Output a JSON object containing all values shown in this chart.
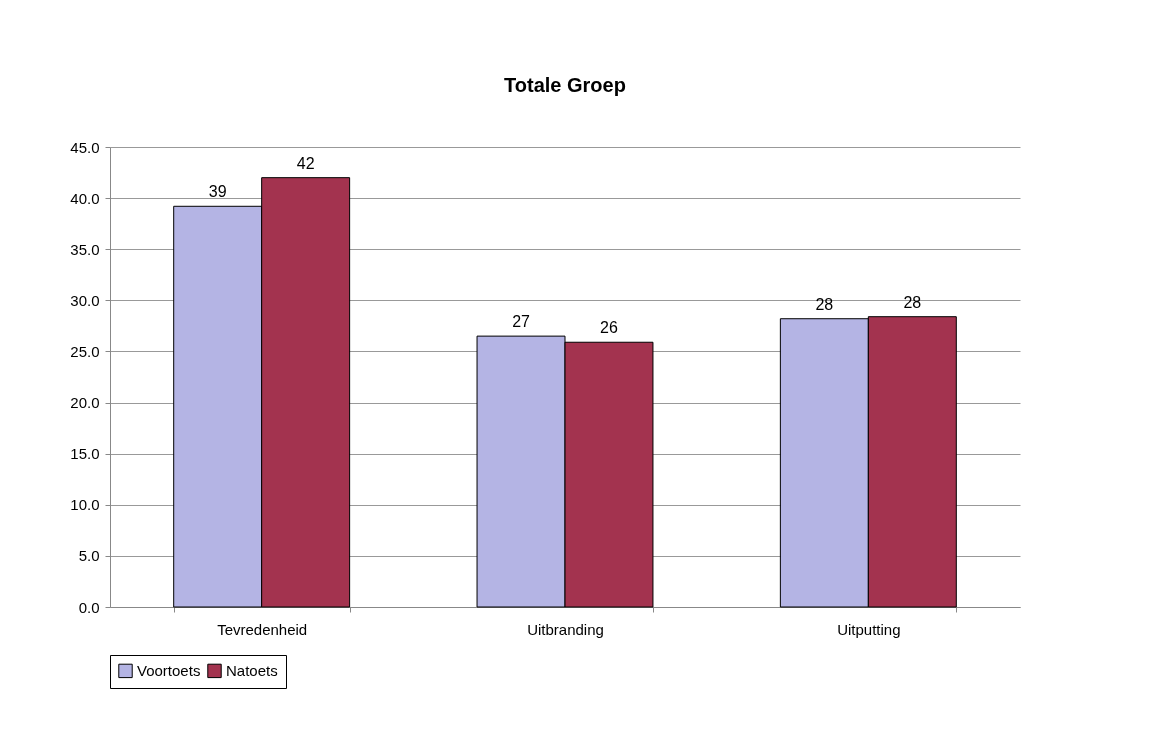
{
  "chart_data": {
    "type": "bar",
    "title": "Totale Groep",
    "categories": [
      "Tevredenheid",
      "Uitbranding",
      "Uitputting"
    ],
    "series": [
      {
        "name": "Voortoets",
        "color": "#b4b4e4",
        "values": [
          39.2,
          26.5,
          28.2
        ],
        "value_labels": [
          "39",
          "27",
          "28"
        ]
      },
      {
        "name": "Natoets",
        "color": "#a3334f",
        "values": [
          42.0,
          25.9,
          28.4
        ],
        "value_labels": [
          "42",
          "26",
          "28"
        ]
      }
    ],
    "ylim": [
      0,
      45
    ],
    "yticks": [
      {
        "value": 0,
        "label": "0.0"
      },
      {
        "value": 5,
        "label": "5.0"
      },
      {
        "value": 10,
        "label": "10.0"
      },
      {
        "value": 15,
        "label": "15.0"
      },
      {
        "value": 20,
        "label": "20.0"
      },
      {
        "value": 25,
        "label": "25.0"
      },
      {
        "value": 30,
        "label": "30.0"
      },
      {
        "value": 35,
        "label": "35.0"
      },
      {
        "value": 40,
        "label": "40.0"
      },
      {
        "value": 45,
        "label": "45.0"
      }
    ],
    "grid": "y",
    "legend": "bottom"
  }
}
